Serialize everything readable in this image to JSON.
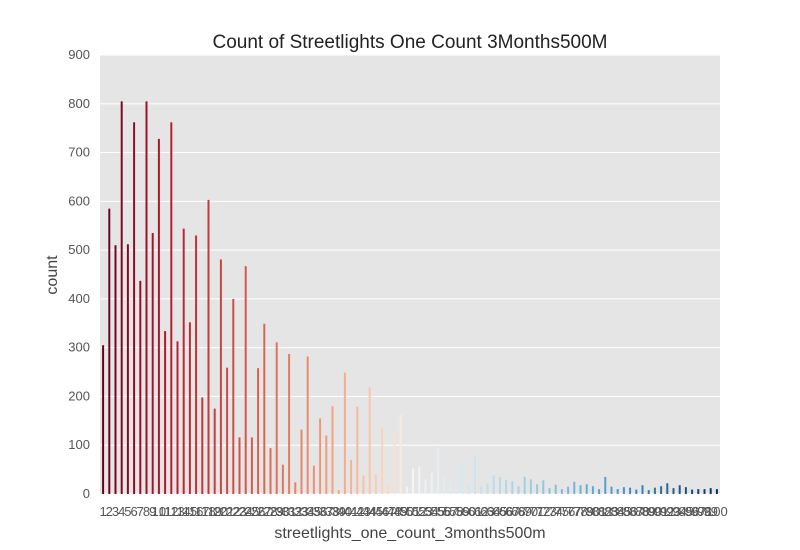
{
  "chart_data": {
    "type": "bar",
    "title": "Count of Streetlights One Count 3Months500M",
    "xlabel": "streetlights_one_count_3months500m",
    "ylabel": "count",
    "ylim": [
      0,
      900
    ],
    "yticks": [
      "0",
      "100",
      "200",
      "300",
      "400",
      "500",
      "600",
      "700",
      "800",
      "900"
    ],
    "x_tick_labels_visible": {
      "first": "1",
      "last": "100"
    },
    "grid": true,
    "colormap": "RdBu",
    "colors": {
      "background": "#e5e5e5",
      "grid": "#ffffff"
    },
    "categories": [
      1,
      2,
      3,
      4,
      5,
      6,
      7,
      8,
      9,
      10,
      11,
      12,
      13,
      14,
      15,
      16,
      17,
      18,
      19,
      20,
      21,
      22,
      23,
      24,
      25,
      26,
      27,
      28,
      29,
      30,
      31,
      32,
      33,
      34,
      35,
      36,
      37,
      38,
      39,
      40,
      41,
      42,
      43,
      44,
      45,
      46,
      47,
      48,
      49,
      50,
      51,
      52,
      53,
      54,
      55,
      56,
      57,
      58,
      59,
      60,
      61,
      62,
      63,
      64,
      65,
      66,
      67,
      68,
      69,
      70,
      71,
      72,
      73,
      74,
      75,
      76,
      77,
      78,
      79,
      80,
      81,
      82,
      83,
      84,
      85,
      86,
      87,
      88,
      89,
      90,
      91,
      92,
      93,
      94,
      95,
      96,
      97,
      98,
      99,
      100
    ],
    "values": [
      305,
      585,
      510,
      805,
      512,
      762,
      437,
      805,
      535,
      728,
      334,
      762,
      313,
      544,
      352,
      530,
      198,
      603,
      175,
      481,
      259,
      400,
      116,
      467,
      116,
      258,
      349,
      94,
      311,
      60,
      287,
      24,
      132,
      282,
      58,
      155,
      120,
      180,
      8,
      249,
      70,
      179,
      38,
      219,
      40,
      136,
      18,
      125,
      162,
      15,
      52,
      55,
      30,
      44,
      95,
      33,
      26,
      54,
      67,
      20,
      78,
      16,
      22,
      38,
      35,
      29,
      26,
      16,
      35,
      30,
      20,
      28,
      12,
      19,
      10,
      15,
      25,
      18,
      20,
      16,
      10,
      35,
      15,
      10,
      14,
      13,
      9,
      18,
      8,
      13,
      16,
      22,
      12,
      18,
      14,
      9,
      10,
      10,
      12,
      10
    ]
  }
}
